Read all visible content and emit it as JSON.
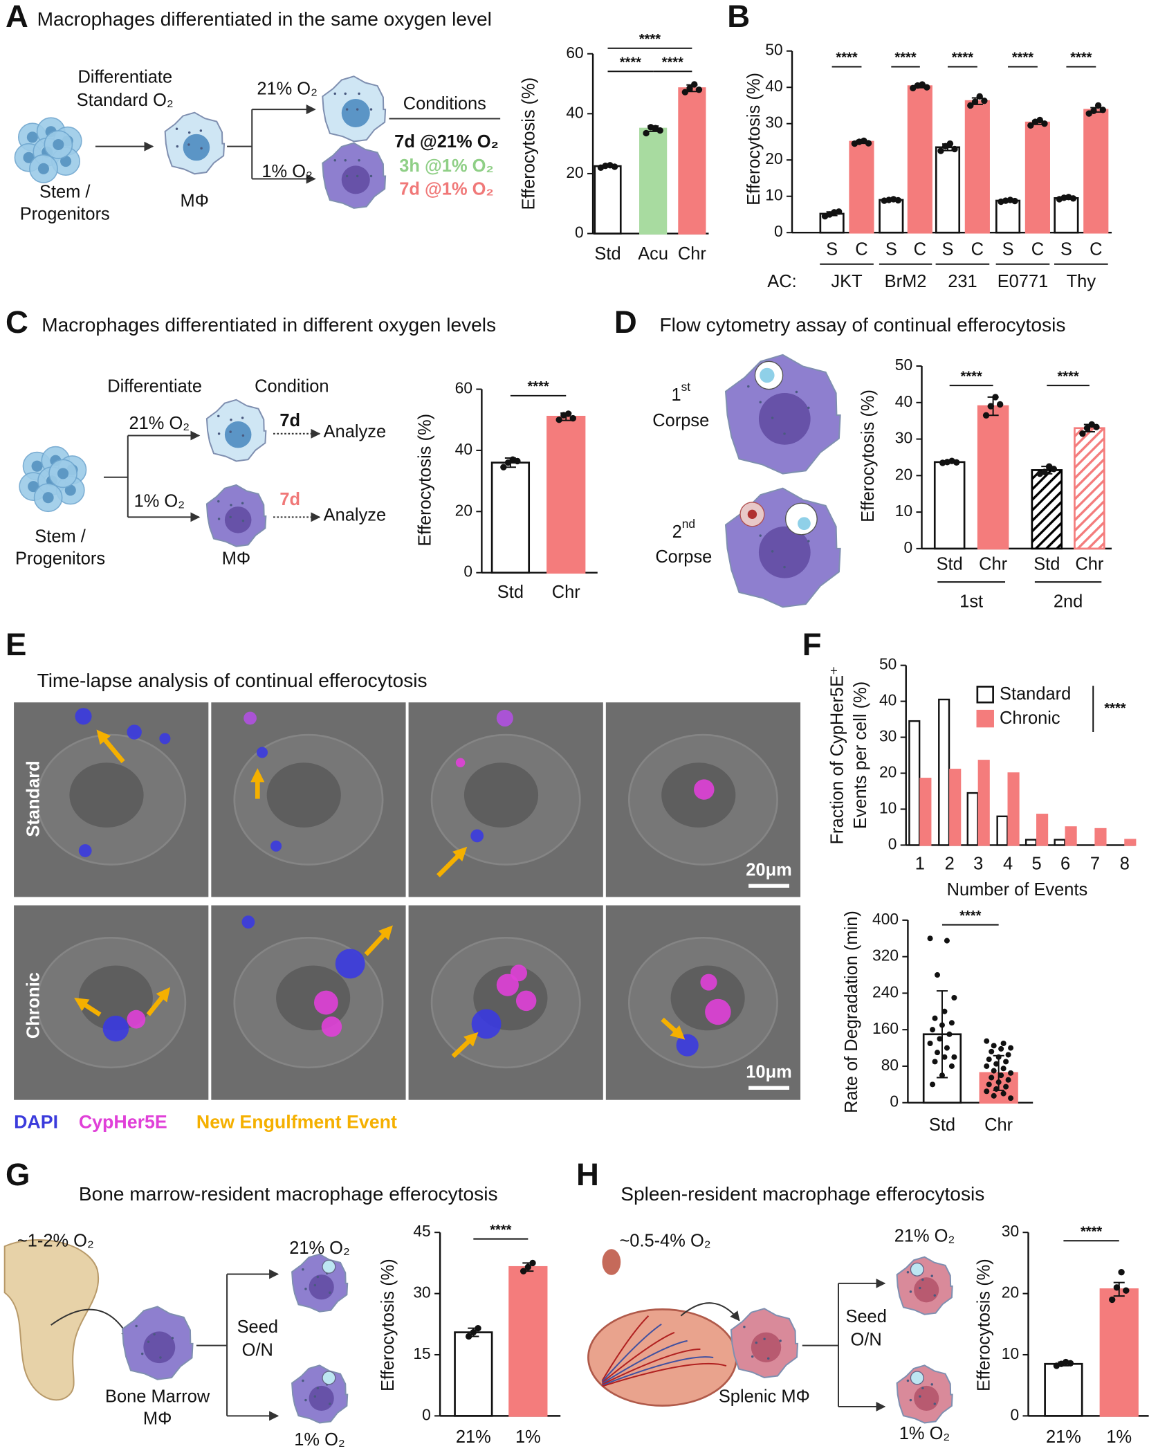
{
  "panel_letters": [
    "A",
    "B",
    "C",
    "D",
    "E",
    "F",
    "G",
    "H"
  ],
  "panel_titles": {
    "A": "Macrophages differentiated in the same oxygen level",
    "C": "Macrophages differentiated in different oxygen levels",
    "D": "Flow cytometry assay of continual efferocytosis",
    "E": "Time-lapse analysis of continual efferocytosis",
    "G": "Bone marrow-resident macrophage efferocytosis",
    "H": "Spleen-resident macrophage efferocytosis"
  },
  "schematic_A": {
    "differentiate": "Differentiate",
    "standard": "Standard O₂",
    "high": "21% O₂",
    "low": "1% O₂",
    "stem": "Stem /",
    "progenitors": "Progenitors",
    "macrophage": "MΦ",
    "conditions": "Conditions",
    "cond_std": "7d @21% O₂",
    "cond_acu": "3h @1% O₂",
    "cond_chr": "7d @1% O₂"
  },
  "schematic_C": {
    "differentiate": "Differentiate",
    "condition": "Condition",
    "high": "21% O₂",
    "low": "1% O₂",
    "stem": "Stem /",
    "progenitors": "Progenitors",
    "macrophage": "MΦ",
    "time_std": "7d",
    "analyze_std": "Analyze",
    "time_chr": "7d",
    "analyze_chr": "Analyze"
  },
  "schematic_D": {
    "first_num": "1",
    "first_sup": "st",
    "first_label": "Corpse",
    "second_num": "2",
    "second_sup": "nd",
    "second_label": "Corpse"
  },
  "panel_E": {
    "row_standard": "Standard",
    "row_chronic": "Chronic",
    "scale_standard": "20μm",
    "scale_chronic": "10μm",
    "legend_dapi": "DAPI",
    "legend_cypher": "CypHer5E",
    "legend_event": "New Engulfment Event"
  },
  "schematic_G": {
    "oxygen": "~1-2% O₂",
    "cell": "Bone Marrow",
    "cell2": "MΦ",
    "seed": "Seed",
    "overnight": "O/N",
    "high": "21% O₂",
    "low": "1% O₂"
  },
  "schematic_H": {
    "oxygen": "~0.5-4% O₂",
    "cell": "Splenic MΦ",
    "seed": "Seed",
    "overnight": "O/N",
    "high": "21% O₂",
    "low": "1% O₂"
  },
  "chart_data": [
    {
      "type": "bar",
      "ylabel": "Efferocytosis (%)",
      "categories": [
        "Std",
        "Acu",
        "Chr"
      ],
      "values": [
        22.5,
        35,
        48.5
      ],
      "errors": [
        0.3,
        0.9,
        1.1
      ],
      "points": [
        [
          22,
          22.6,
          22.8,
          22.3
        ],
        [
          33.5,
          35.5,
          35.2,
          34.4
        ],
        [
          47.2,
          48.5,
          49.8,
          48
        ]
      ],
      "colors": [
        "#ffffff",
        "#a8dba0",
        "#f47c7c"
      ],
      "hatch": [
        false,
        false,
        false
      ],
      "ylim": [
        0,
        60
      ],
      "yticks": [
        0,
        20,
        40,
        60
      ],
      "significance": [
        "****",
        "****",
        "****"
      ]
    },
    {
      "type": "bar",
      "ylabel": "Efferocytosis (%)",
      "categories": [
        "S",
        "C",
        "S",
        "C",
        "S",
        "C",
        "S",
        "C",
        "S",
        "C"
      ],
      "group_label": "AC:",
      "groups": [
        "JKT",
        "BrM2",
        "231",
        "E0771",
        "Thy"
      ],
      "values": [
        5.2,
        25,
        9,
        40.3,
        23.5,
        36.2,
        8.8,
        30.3,
        9.5,
        33.8
      ],
      "errors": [
        0.5,
        0.4,
        0.2,
        0.4,
        0.9,
        0.9,
        0.2,
        0.5,
        0.3,
        0.6
      ],
      "points": [
        [
          4.5,
          5,
          5.6,
          5.8
        ],
        [
          24.5,
          25,
          25.3,
          24.6
        ],
        [
          8.8,
          9,
          9.2,
          8.9
        ],
        [
          39.8,
          40.5,
          40.8,
          40
        ],
        [
          22.5,
          23.8,
          24.5,
          23
        ],
        [
          35,
          36,
          37.5,
          36.3
        ],
        [
          8.5,
          8.8,
          9,
          8.7
        ],
        [
          29.5,
          30.5,
          31,
          30
        ],
        [
          9.2,
          9.6,
          9.8,
          9.4
        ],
        [
          32.8,
          33.5,
          35,
          33.8
        ]
      ],
      "colors": [
        "#ffffff",
        "#f47c7c",
        "#ffffff",
        "#f47c7c",
        "#ffffff",
        "#f47c7c",
        "#ffffff",
        "#f47c7c",
        "#ffffff",
        "#f47c7c"
      ],
      "hatch": [
        false,
        false,
        false,
        false,
        false,
        false,
        false,
        false,
        false,
        false
      ],
      "ylim": [
        0,
        50
      ],
      "yticks": [
        0,
        10,
        20,
        30,
        40,
        50
      ],
      "significance": [
        "****",
        "****",
        "****",
        "****",
        "****"
      ]
    },
    {
      "type": "bar",
      "ylabel": "Efferocytosis (%)",
      "categories": [
        "Std",
        "Chr"
      ],
      "values": [
        36,
        51
      ],
      "errors": [
        1.5,
        1.2
      ],
      "points": [
        [
          34.5,
          36,
          37,
          36.5
        ],
        [
          50,
          51.5,
          52,
          50.5
        ]
      ],
      "colors": [
        "#ffffff",
        "#f47c7c"
      ],
      "hatch": [
        false,
        false
      ],
      "ylim": [
        0,
        60
      ],
      "yticks": [
        0,
        20,
        40,
        60
      ],
      "significance": [
        "****"
      ]
    },
    {
      "type": "bar",
      "ylabel": "Efferocytosis (%)",
      "categories": [
        "Std",
        "Chr",
        "Std",
        "Chr"
      ],
      "groups": [
        "1st",
        "2nd"
      ],
      "values": [
        23.7,
        39,
        21.5,
        33
      ],
      "errors": [
        0.3,
        2.5,
        1,
        1
      ],
      "points": [
        [
          23.5,
          23.7,
          24,
          23.6
        ],
        [
          36.5,
          39,
          41.5,
          39.5
        ],
        [
          20.5,
          21,
          22.5,
          21.8
        ],
        [
          31.5,
          33,
          34,
          33.3
        ]
      ],
      "colors": [
        "#ffffff",
        "#f47c7c",
        "#000000",
        "#f47c7c"
      ],
      "hatch": [
        false,
        false,
        true,
        true
      ],
      "ylim": [
        0,
        50
      ],
      "yticks": [
        0,
        10,
        20,
        30,
        40,
        50
      ],
      "significance": [
        "****",
        "****"
      ]
    },
    {
      "type": "grouped_bar",
      "ylabel": [
        "Fraction of CypHer5E⁺",
        "Events per cell (%)"
      ],
      "xlabel": "Number of Events",
      "categories": [
        "1",
        "2",
        "3",
        "4",
        "5",
        "6",
        "7",
        "8"
      ],
      "series": [
        {
          "name": "Standard",
          "color": "#ffffff",
          "values": [
            34.5,
            40.5,
            14.5,
            8,
            1.5,
            1.5,
            0,
            0
          ]
        },
        {
          "name": "Chronic",
          "color": "#f47c7c",
          "values": [
            18.5,
            21,
            23.5,
            20,
            8.5,
            5,
            4.5,
            1.5
          ]
        }
      ],
      "legend": "upper-right",
      "ylim": [
        0,
        50
      ],
      "yticks": [
        0,
        10,
        20,
        30,
        40,
        50
      ],
      "significance": [
        "****"
      ]
    },
    {
      "type": "bar",
      "ylabel": "Rate of Degradation (min)",
      "categories": [
        "Std",
        "Chr"
      ],
      "values": [
        150,
        65
      ],
      "errors": [
        95,
        38
      ],
      "points": [
        [
          360,
          355,
          280,
          230,
          200,
          185,
          175,
          170,
          160,
          150,
          140,
          130,
          120,
          110,
          100,
          100,
          90,
          80,
          60,
          40
        ],
        [
          135,
          130,
          125,
          120,
          118,
          112,
          105,
          100,
          95,
          90,
          85,
          80,
          75,
          70,
          65,
          60,
          55,
          50,
          45,
          40,
          35,
          30,
          25,
          20,
          15,
          10
        ]
      ],
      "colors": [
        "#ffffff",
        "#f47c7c"
      ],
      "hatch": [
        false,
        false
      ],
      "ylim": [
        0,
        400
      ],
      "yticks": [
        0,
        80,
        160,
        240,
        320,
        400
      ],
      "significance": [
        "****"
      ]
    },
    {
      "type": "bar",
      "ylabel": "Efferocytosis (%)",
      "categories": [
        "21%",
        "1%"
      ],
      "values": [
        20.5,
        36.5
      ],
      "errors": [
        1,
        1
      ],
      "points": [
        [
          19.5,
          20.5,
          21.5
        ],
        [
          35.5,
          36.5,
          37.5
        ]
      ],
      "colors": [
        "#ffffff",
        "#f47c7c"
      ],
      "hatch": [
        false,
        false
      ],
      "ylim": [
        0,
        45
      ],
      "yticks": [
        0,
        15,
        30,
        45
      ],
      "significance": [
        "****"
      ]
    },
    {
      "type": "bar",
      "ylabel": "Efferocytosis (%)",
      "categories": [
        "21%",
        "1%"
      ],
      "values": [
        8.5,
        20.7
      ],
      "errors": [
        0.3,
        1.1
      ],
      "points": [
        [
          8.2,
          8.5,
          8.8,
          8.6
        ],
        [
          19,
          21,
          23.5,
          20.5
        ]
      ],
      "colors": [
        "#ffffff",
        "#f47c7c"
      ],
      "hatch": [
        false,
        false
      ],
      "ylim": [
        0,
        30
      ],
      "yticks": [
        0,
        10,
        20,
        30
      ],
      "significance": [
        "****"
      ]
    }
  ]
}
